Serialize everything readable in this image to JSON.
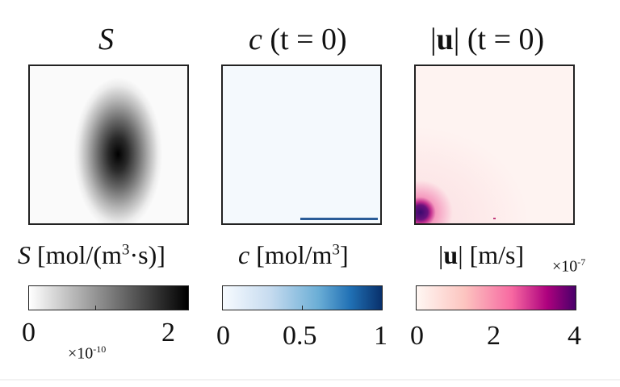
{
  "panels": [
    {
      "id": "source",
      "title": {
        "var": "S",
        "bold": "",
        "suffix": ""
      },
      "colorbar_label": {
        "var": "S",
        "bold": "",
        "unit": "[mol/(m",
        "sup": "3",
        "unit2": "·s)]"
      },
      "ticks": [
        "0",
        "2"
      ],
      "multiplier": {
        "base": "×10",
        "exp": "-10"
      },
      "colormap": [
        "#ffffff",
        "#000000"
      ]
    },
    {
      "id": "concentration",
      "title": {
        "var": "c",
        "bold": "",
        "suffix": " (t = 0)"
      },
      "colorbar_label": {
        "var": "c",
        "bold": "",
        "unit": "[mol/m",
        "sup": "3",
        "unit2": "]"
      },
      "ticks": [
        "0",
        "0.5",
        "1"
      ],
      "multiplier": null,
      "colormap": [
        "#f7fbff",
        "#08306b"
      ]
    },
    {
      "id": "velocity",
      "title": {
        "var": "",
        "bold": "|u|",
        "suffix": " (t = 0)"
      },
      "colorbar_label": {
        "var": "",
        "bold": "|u|",
        "unit": "[m/s]",
        "sup": "",
        "unit2": ""
      },
      "ticks": [
        "0",
        "2",
        "4"
      ],
      "multiplier": {
        "base": "×10",
        "exp": "-7"
      },
      "colormap": [
        "#fff7f3",
        "#f768a1",
        "#49006a"
      ]
    }
  ],
  "text": {
    "t1_var": "S",
    "t2_var": "c",
    "t2_rest": "(t = 0)",
    "t3_bold": "u",
    "t3_rest": "(t = 0)",
    "cb1_var": "S",
    "cb1_unit": "[mol/(m",
    "cb1_sup": "3",
    "cb1_unit2": "·s)]",
    "cb2_var": "c",
    "cb2_unit": "[mol/m",
    "cb2_sup": "3",
    "cb2_unit2": "]",
    "cb3_bold": "u",
    "cb3_unit": "[m/s]",
    "mult1_base": "×10",
    "mult1_exp": "-10",
    "mult3_base": "×10",
    "mult3_exp": "-7",
    "tick1_0": "0",
    "tick1_1": "2",
    "tick2_0": "0",
    "tick2_1": "0.5",
    "tick2_2": "1",
    "tick3_0": "0",
    "tick3_1": "2",
    "tick3_2": "4"
  }
}
